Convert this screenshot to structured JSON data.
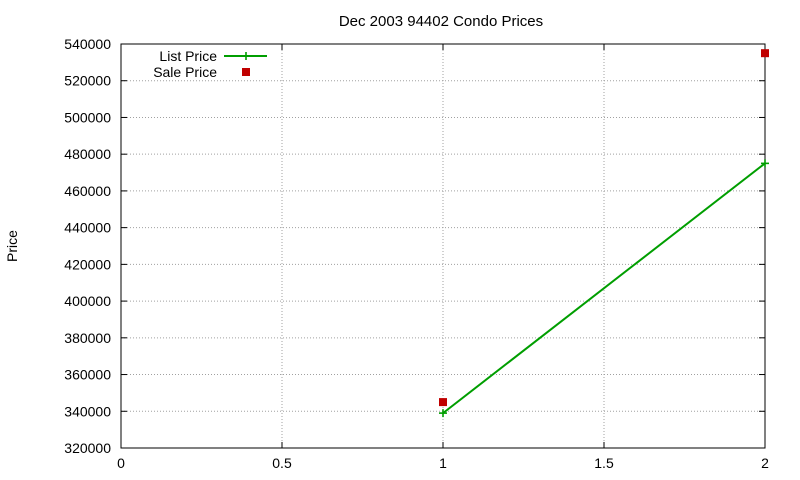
{
  "chart_data": {
    "type": "line",
    "title": "Dec 2003 94402 Condo Prices",
    "xlabel": "",
    "ylabel": "Price",
    "xlim": [
      0,
      2
    ],
    "ylim": [
      320000,
      540000
    ],
    "x_ticks": [
      "0",
      "0.5",
      "1",
      "1.5",
      "2"
    ],
    "y_ticks": [
      "320000",
      "340000",
      "360000",
      "380000",
      "400000",
      "420000",
      "440000",
      "460000",
      "480000",
      "500000",
      "520000",
      "540000"
    ],
    "grid": true,
    "legend_position": "top-left",
    "series": [
      {
        "name": "List Price",
        "style": "linespoints",
        "marker": "plus",
        "color": "#009e00",
        "points": [
          {
            "x": 1,
            "y": 339000
          },
          {
            "x": 2,
            "y": 475000
          }
        ]
      },
      {
        "name": "Sale Price",
        "style": "points",
        "marker": "square",
        "color": "#c00000",
        "points": [
          {
            "x": 1,
            "y": 345000
          },
          {
            "x": 2,
            "y": 535000
          }
        ]
      }
    ]
  }
}
